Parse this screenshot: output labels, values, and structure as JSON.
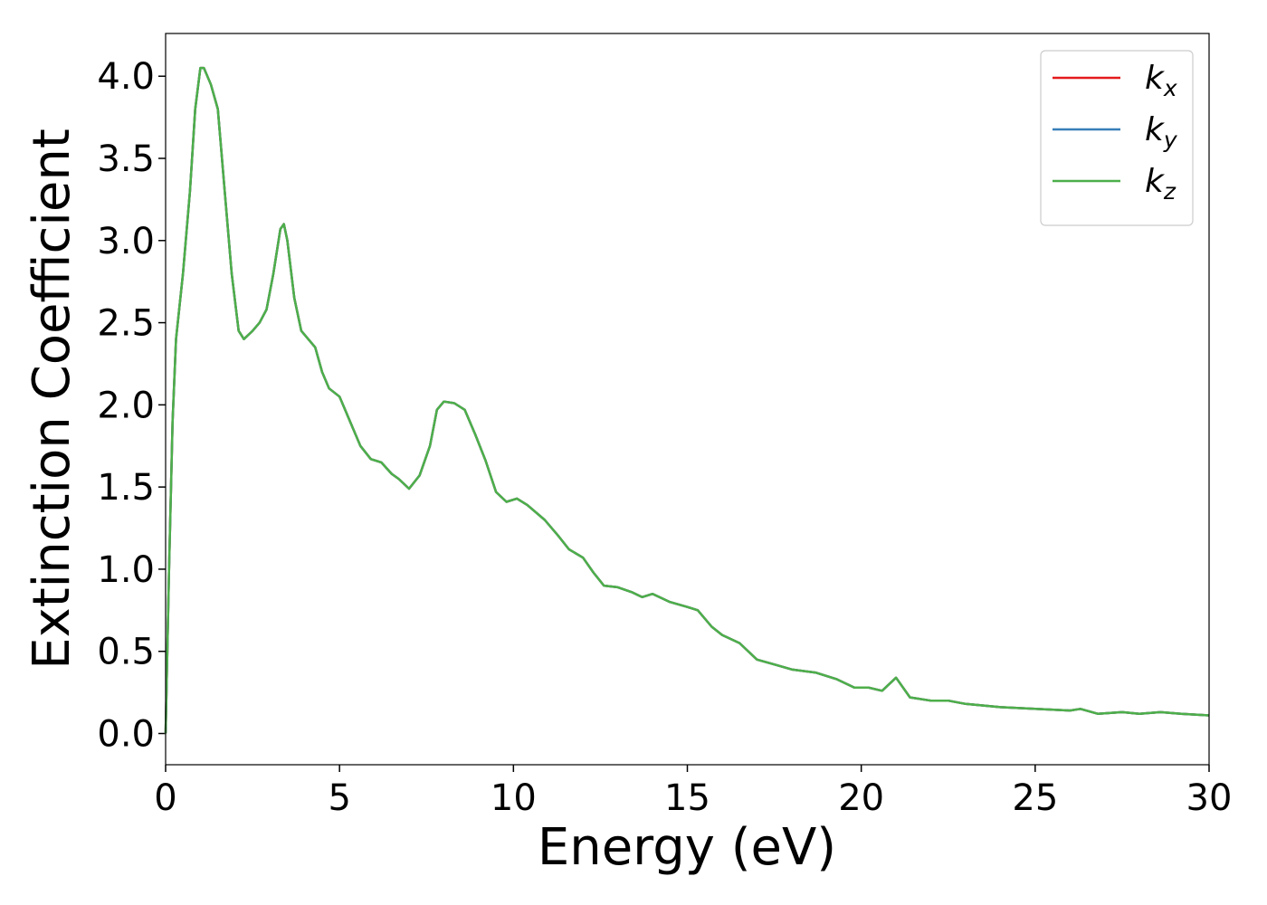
{
  "chart_data": {
    "type": "line",
    "x_label": "Energy (eV)",
    "y_label": "Extinction Coefficient",
    "x": [
      0,
      0.1,
      0.2,
      0.3,
      0.5,
      0.7,
      0.85,
      1.0,
      1.1,
      1.3,
      1.5,
      1.7,
      1.9,
      2.1,
      2.25,
      2.5,
      2.7,
      2.9,
      3.1,
      3.3,
      3.4,
      3.5,
      3.7,
      3.9,
      4.1,
      4.3,
      4.5,
      4.7,
      5.0,
      5.3,
      5.6,
      5.9,
      6.2,
      6.5,
      6.7,
      7.0,
      7.3,
      7.6,
      7.8,
      8.0,
      8.3,
      8.6,
      8.9,
      9.2,
      9.5,
      9.8,
      10.1,
      10.4,
      10.9,
      11.3,
      11.6,
      12.0,
      12.3,
      12.6,
      13.0,
      13.4,
      13.7,
      14.0,
      14.5,
      15.0,
      15.3,
      15.7,
      16.0,
      16.5,
      17.0,
      17.5,
      18.0,
      18.7,
      19.3,
      19.8,
      20.2,
      20.6,
      21.0,
      21.4,
      22.0,
      22.5,
      23.0,
      24.0,
      25.0,
      26.0,
      26.3,
      26.8,
      27.5,
      28.0,
      28.6,
      29.2,
      30.0
    ],
    "series": [
      {
        "name": "kx",
        "color": "#e41a1c",
        "values": [
          0,
          1.0,
          1.9,
          2.4,
          2.8,
          3.3,
          3.8,
          4.05,
          4.05,
          3.95,
          3.8,
          3.3,
          2.8,
          2.45,
          2.4,
          2.45,
          2.5,
          2.58,
          2.8,
          3.07,
          3.1,
          3.0,
          2.65,
          2.45,
          2.4,
          2.35,
          2.2,
          2.1,
          2.05,
          1.9,
          1.75,
          1.67,
          1.65,
          1.58,
          1.55,
          1.49,
          1.57,
          1.75,
          1.97,
          2.02,
          2.01,
          1.97,
          1.82,
          1.66,
          1.47,
          1.41,
          1.43,
          1.39,
          1.3,
          1.2,
          1.12,
          1.07,
          0.98,
          0.9,
          0.89,
          0.86,
          0.83,
          0.85,
          0.8,
          0.77,
          0.75,
          0.65,
          0.6,
          0.55,
          0.45,
          0.42,
          0.39,
          0.37,
          0.33,
          0.28,
          0.28,
          0.26,
          0.34,
          0.22,
          0.2,
          0.2,
          0.18,
          0.16,
          0.15,
          0.14,
          0.15,
          0.12,
          0.13,
          0.12,
          0.13,
          0.12,
          0.11
        ]
      },
      {
        "name": "ky",
        "color": "#377eb8",
        "values": [
          0,
          1.0,
          1.9,
          2.4,
          2.8,
          3.3,
          3.8,
          4.05,
          4.05,
          3.95,
          3.8,
          3.3,
          2.8,
          2.45,
          2.4,
          2.45,
          2.5,
          2.58,
          2.8,
          3.07,
          3.1,
          3.0,
          2.65,
          2.45,
          2.4,
          2.35,
          2.2,
          2.1,
          2.05,
          1.9,
          1.75,
          1.67,
          1.65,
          1.58,
          1.55,
          1.49,
          1.57,
          1.75,
          1.97,
          2.02,
          2.01,
          1.97,
          1.82,
          1.66,
          1.47,
          1.41,
          1.43,
          1.39,
          1.3,
          1.2,
          1.12,
          1.07,
          0.98,
          0.9,
          0.89,
          0.86,
          0.83,
          0.85,
          0.8,
          0.77,
          0.75,
          0.65,
          0.6,
          0.55,
          0.45,
          0.42,
          0.39,
          0.37,
          0.33,
          0.28,
          0.28,
          0.26,
          0.34,
          0.22,
          0.2,
          0.2,
          0.18,
          0.16,
          0.15,
          0.14,
          0.15,
          0.12,
          0.13,
          0.12,
          0.13,
          0.12,
          0.11
        ]
      },
      {
        "name": "kz",
        "color": "#4daf4a",
        "values": [
          0,
          1.0,
          1.9,
          2.4,
          2.8,
          3.3,
          3.8,
          4.05,
          4.05,
          3.95,
          3.8,
          3.3,
          2.8,
          2.45,
          2.4,
          2.45,
          2.5,
          2.58,
          2.8,
          3.07,
          3.1,
          3.0,
          2.65,
          2.45,
          2.4,
          2.35,
          2.2,
          2.1,
          2.05,
          1.9,
          1.75,
          1.67,
          1.65,
          1.58,
          1.55,
          1.49,
          1.57,
          1.75,
          1.97,
          2.02,
          2.01,
          1.97,
          1.82,
          1.66,
          1.47,
          1.41,
          1.43,
          1.39,
          1.3,
          1.2,
          1.12,
          1.07,
          0.98,
          0.9,
          0.89,
          0.86,
          0.83,
          0.85,
          0.8,
          0.77,
          0.75,
          0.65,
          0.6,
          0.55,
          0.45,
          0.42,
          0.39,
          0.37,
          0.33,
          0.28,
          0.28,
          0.26,
          0.34,
          0.22,
          0.2,
          0.2,
          0.18,
          0.16,
          0.15,
          0.14,
          0.15,
          0.12,
          0.13,
          0.12,
          0.13,
          0.12,
          0.11
        ]
      }
    ],
    "xlim": [
      0,
      30
    ],
    "xticks": [
      0,
      5,
      10,
      15,
      20,
      25,
      30
    ],
    "ylim": [
      -0.19,
      4.26
    ],
    "yticks": [
      {
        "value": 0,
        "label": "0.0"
      },
      0.5,
      {
        "value": 1,
        "label": "1.0"
      },
      1.5,
      {
        "value": 2,
        "label": "2.0"
      },
      2.5,
      {
        "value": 3,
        "label": "3.0"
      },
      3.5,
      {
        "value": 4,
        "label": "4.0"
      }
    ],
    "grid": false,
    "legend": "upper right"
  }
}
